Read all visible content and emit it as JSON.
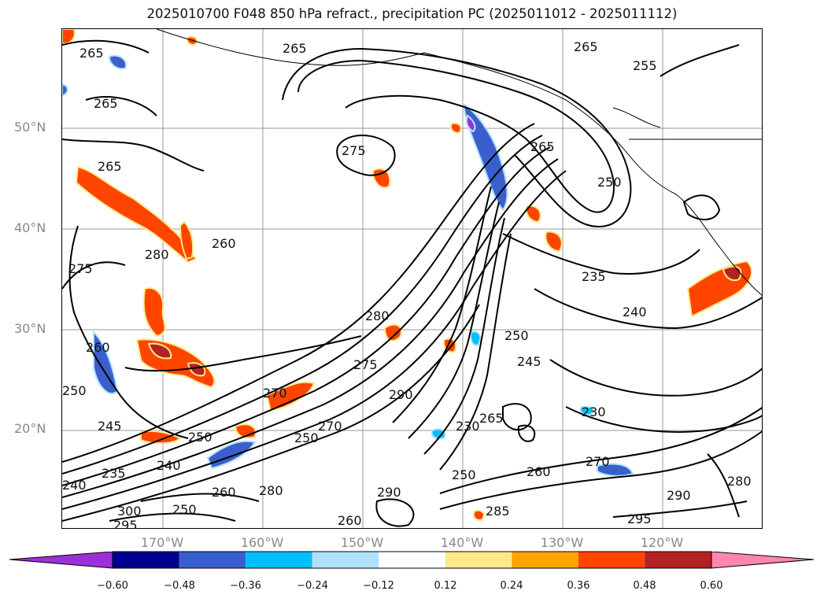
{
  "title": "2025010700 F048 850 hPa refract., precipitation PC (2025011012 - 2025011112)",
  "latitude_labels": [
    "50°N",
    "40°N",
    "30°N",
    "20°N"
  ],
  "longitude_labels": [
    "170°W",
    "160°W",
    "150°W",
    "140°W",
    "130°W",
    "120°W"
  ],
  "contour_labels": [
    "265",
    "265",
    "265",
    "265",
    "265",
    "255",
    "265",
    "275",
    "250",
    "235",
    "240",
    "280",
    "250",
    "245",
    "230",
    "290",
    "295",
    "290",
    "280",
    "275",
    "260",
    "250",
    "245",
    "235",
    "240",
    "300",
    "295",
    "260",
    "250",
    "270",
    "280",
    "290",
    "260",
    "230",
    "250",
    "270",
    "285",
    "280",
    "260",
    "250",
    "240",
    "270",
    "275",
    "265",
    "260",
    "250"
  ],
  "colorbar": {
    "ticks": [
      "−0.60",
      "−0.48",
      "−0.36",
      "−0.24",
      "−0.12",
      "0.12",
      "0.24",
      "0.36",
      "0.48",
      "0.60"
    ],
    "colors": [
      "#9b30d9",
      "#000090",
      "#3a5fcd",
      "#00bfff",
      "#b0e2ff",
      "#ffffff",
      "#ffe889",
      "#ffa500",
      "#ff4500",
      "#b22222",
      "#ff88aa"
    ]
  }
}
